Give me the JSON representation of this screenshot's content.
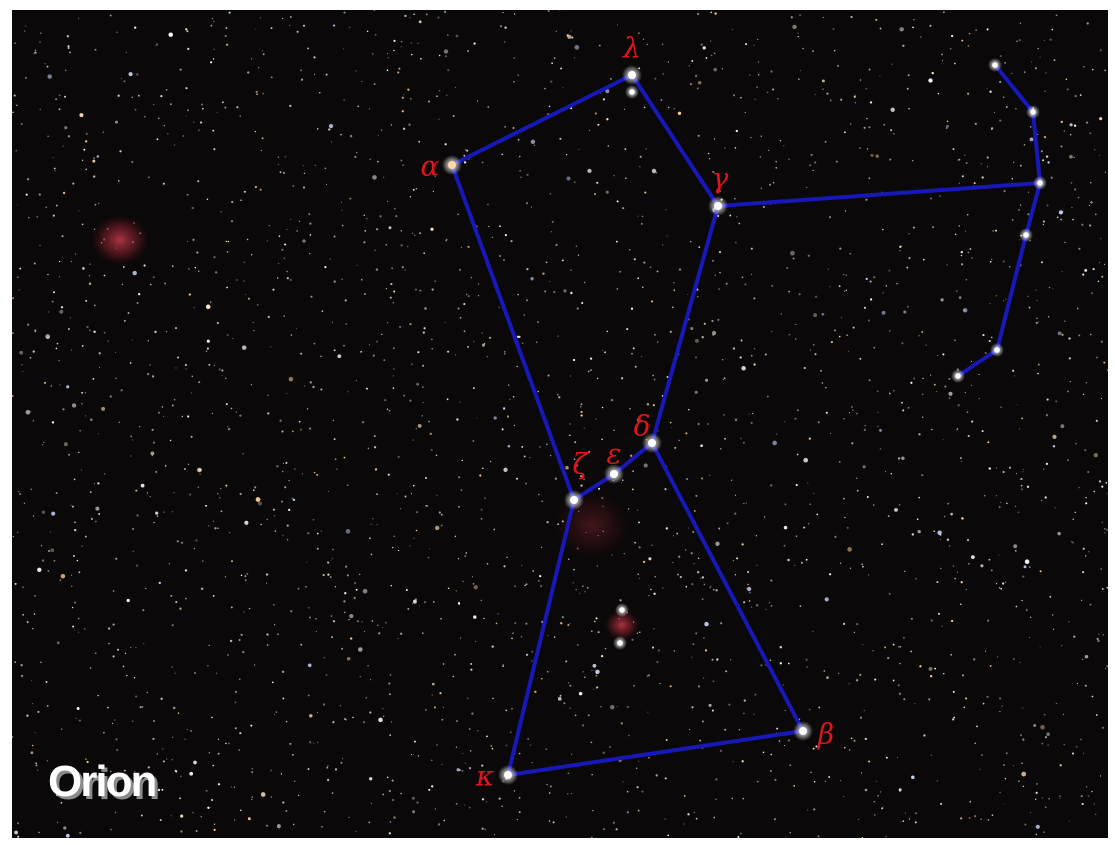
{
  "title": "Orion",
  "stars": [
    {
      "label": "λ"
    },
    {
      "label": "α"
    },
    {
      "label": "γ"
    },
    {
      "label": "δ"
    },
    {
      "label": "ε"
    },
    {
      "label": "ζ"
    },
    {
      "label": "κ"
    },
    {
      "label": "β"
    }
  ]
}
